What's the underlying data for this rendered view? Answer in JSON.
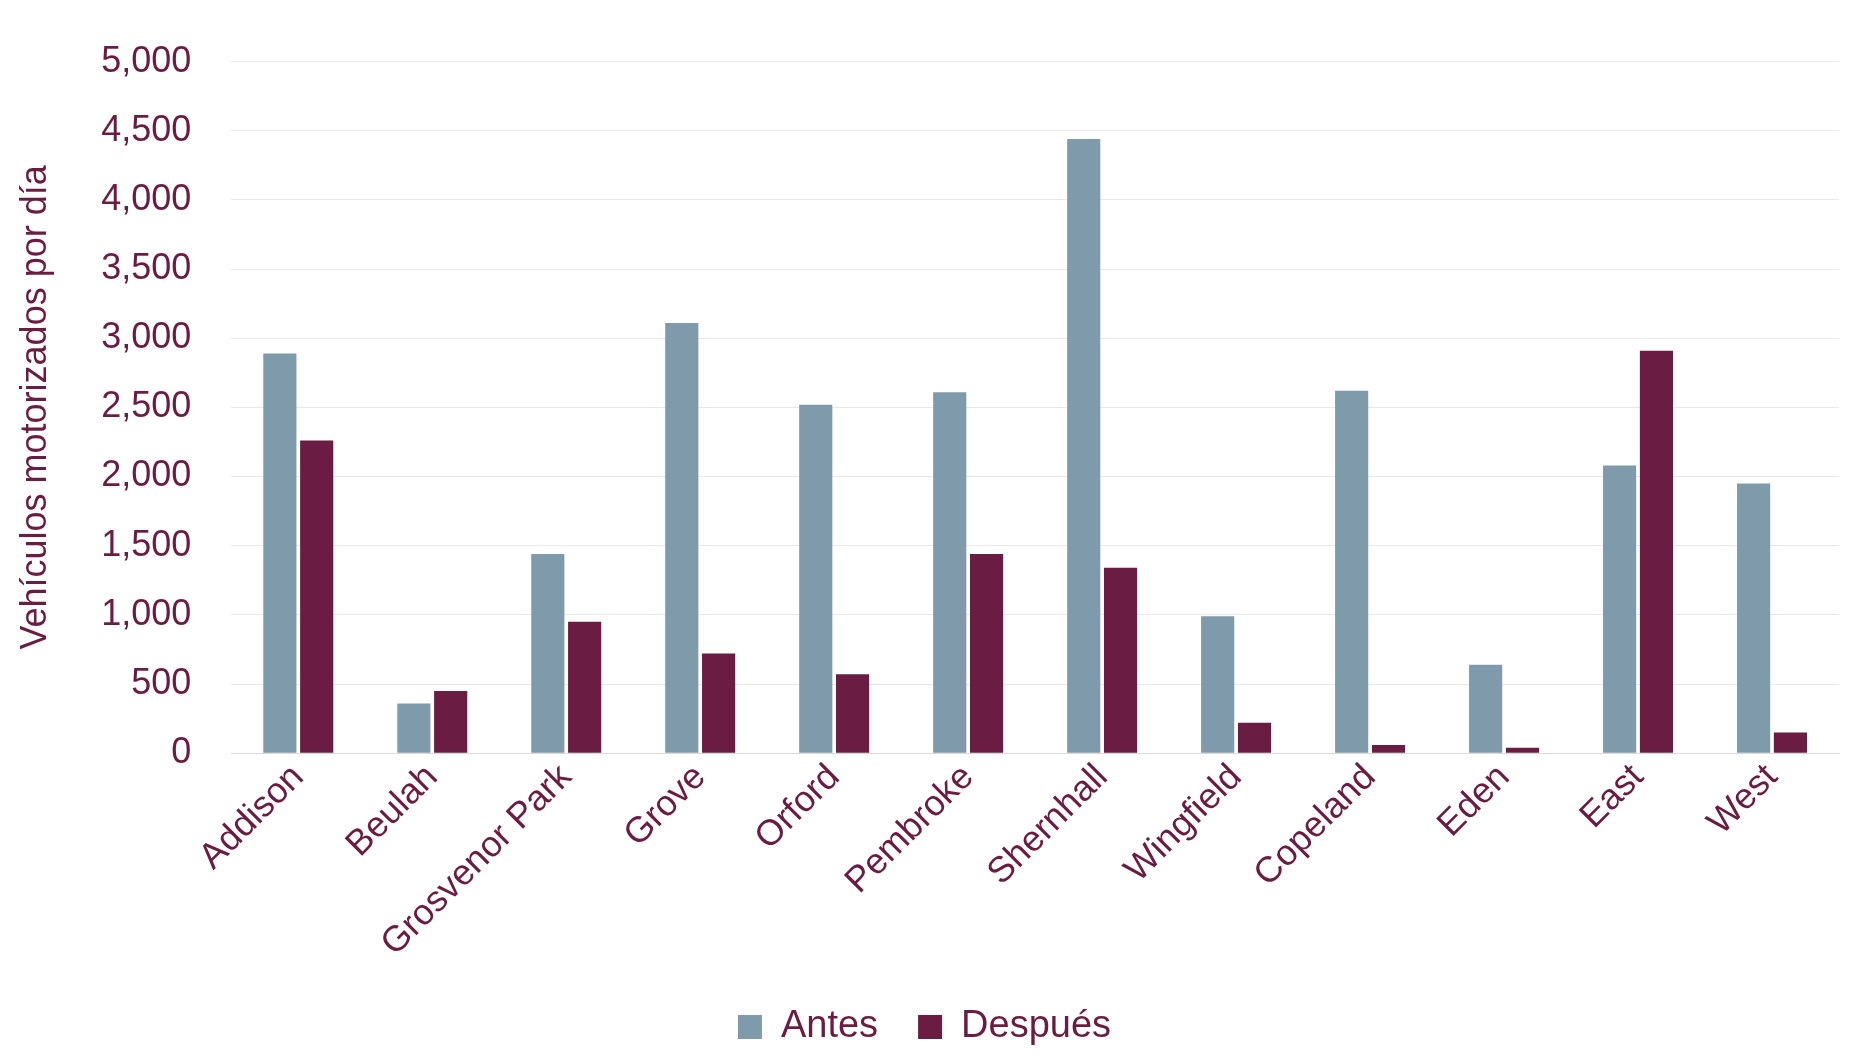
{
  "chart_data": {
    "type": "bar",
    "ylabel": "Vehículos motorizados por día",
    "categories": [
      "Addison",
      "Beulah",
      "Grosvenor Park",
      "Grove",
      "Orford",
      "Pembroke",
      "Shernhall",
      "Wingfield",
      "Copeland",
      "Eden",
      "East",
      "West"
    ],
    "series": [
      {
        "name": "Antes",
        "color": "#7f9bab",
        "values": [
          2890,
          360,
          1440,
          3110,
          2520,
          2610,
          4440,
          990,
          2620,
          640,
          2080,
          1950
        ]
      },
      {
        "name": "Después",
        "color": "#6b1c42",
        "values": [
          2260,
          450,
          950,
          720,
          570,
          1440,
          1340,
          220,
          60,
          40,
          2910,
          150
        ]
      }
    ],
    "ylim": [
      0,
      5000
    ],
    "yticks": [
      {
        "value": 0,
        "label": "0"
      },
      {
        "value": 500,
        "label": "500"
      },
      {
        "value": 1000,
        "label": "1,000"
      },
      {
        "value": 1500,
        "label": "1,500"
      },
      {
        "value": 2000,
        "label": "2,000"
      },
      {
        "value": 2500,
        "label": "2,500"
      },
      {
        "value": 3000,
        "label": "3,000"
      },
      {
        "value": 3500,
        "label": "3,500"
      },
      {
        "value": 4000,
        "label": "4,000"
      },
      {
        "value": 4500,
        "label": "4,500"
      },
      {
        "value": 5000,
        "label": "5,000"
      }
    ],
    "grid": "y",
    "legend": "bottom"
  }
}
